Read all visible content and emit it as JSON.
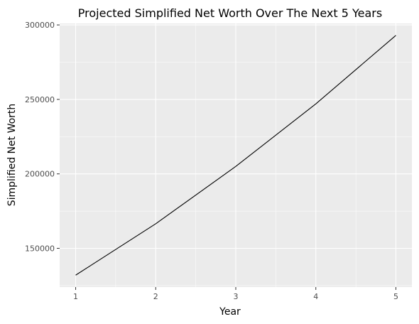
{
  "chart_data": {
    "type": "line",
    "title": "Projected Simplified Net Worth Over The Next 5 Years",
    "xlabel": "Year",
    "ylabel": "Simplified Net Worth",
    "x": [
      1,
      2,
      3,
      4,
      5
    ],
    "series": [
      {
        "values": [
          132000,
          166500,
          205000,
          247000,
          293000
        ]
      }
    ],
    "xticks": [
      1,
      2,
      3,
      4,
      5
    ],
    "yticks": [
      150000,
      200000,
      250000,
      300000
    ],
    "xtick_labels": [
      "1",
      "2",
      "3",
      "4",
      "5"
    ],
    "ytick_labels": [
      "150000",
      "200000",
      "250000",
      "300000"
    ],
    "xlim": [
      0.8,
      5.2
    ],
    "ylim": [
      124000,
      301000
    ],
    "grid": true,
    "colors": {
      "panel_background": "#EBEBEB",
      "grid": "#FFFFFF",
      "line": "#000000",
      "tick": "#333333",
      "tick_label": "#4D4D4D"
    }
  }
}
